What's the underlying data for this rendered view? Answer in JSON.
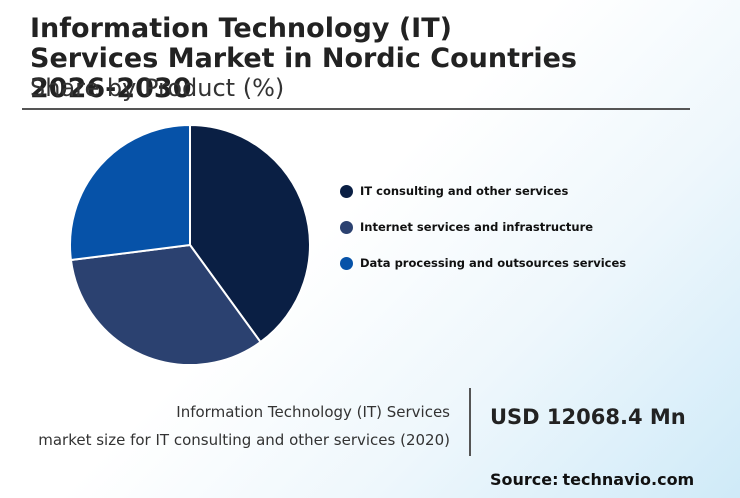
{
  "title_line1": "Information Technology (IT)",
  "title_line2": "Services Market in Nordic Countries",
  "title_line3": "2026-2030",
  "subtitle": "Share by Product (%)",
  "stat": {
    "line1": "Information Technology (IT) Services",
    "line2": "market size for IT consulting and other services (2020)",
    "value": "USD 12068.4 Mn"
  },
  "source": {
    "label": "Source:",
    "name": "technavio.com"
  },
  "chart_data": {
    "type": "pie",
    "categories": [
      "IT consulting and other services",
      "Internet services and infrastructure",
      "Data processing and outsources services"
    ],
    "values": [
      40,
      33,
      27
    ],
    "colors": [
      "#0a1f44",
      "#2b4170",
      "#0652a8"
    ],
    "legend": "right"
  }
}
